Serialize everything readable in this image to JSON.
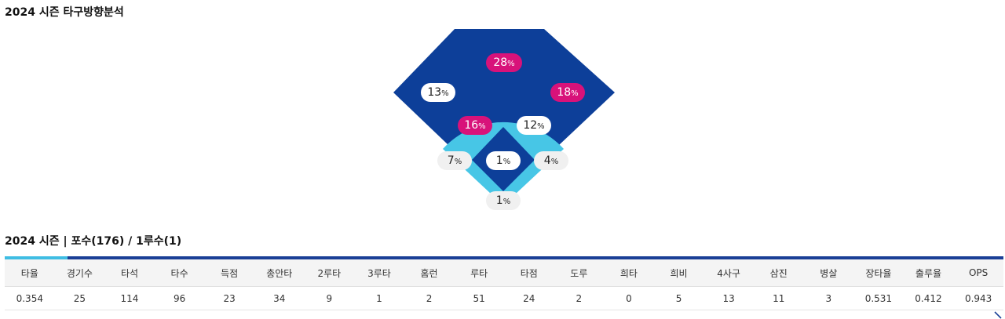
{
  "section1": {
    "title": "2024 시즌 타구방향분석"
  },
  "field": {
    "unit": "%",
    "zones": [
      {
        "id": "deep-center",
        "value": "28",
        "hot": true
      },
      {
        "id": "left-field",
        "value": "13",
        "hot": false
      },
      {
        "id": "right-field",
        "value": "18",
        "hot": true
      },
      {
        "id": "left-infield",
        "value": "16",
        "hot": true
      },
      {
        "id": "right-infield",
        "value": "12",
        "hot": false
      },
      {
        "id": "third-base-line",
        "value": "7",
        "hot": false
      },
      {
        "id": "mound",
        "value": "1",
        "hot": false
      },
      {
        "id": "first-base-line",
        "value": "4",
        "hot": false
      },
      {
        "id": "behind-plate",
        "value": "1",
        "hot": false
      }
    ],
    "colors": {
      "outfield": "#0d3f99",
      "infield_ring": "#47c6e6",
      "infield": "#0d3f99",
      "hot": "#d8127a"
    }
  },
  "section2": {
    "title": "2024 시즌 | 포수(176) / 1루수(1)"
  },
  "stats": {
    "headers": [
      "타율",
      "경기수",
      "타석",
      "타수",
      "득점",
      "총안타",
      "2루타",
      "3루타",
      "홈런",
      "루타",
      "타점",
      "도루",
      "희타",
      "희비",
      "4사구",
      "삼진",
      "병살",
      "장타율",
      "출루율",
      "OPS"
    ],
    "values": [
      "0.354",
      "25",
      "114",
      "96",
      "23",
      "34",
      "9",
      "1",
      "2",
      "51",
      "24",
      "2",
      "0",
      "5",
      "13",
      "11",
      "3",
      "0.531",
      "0.412",
      "0.943"
    ]
  }
}
